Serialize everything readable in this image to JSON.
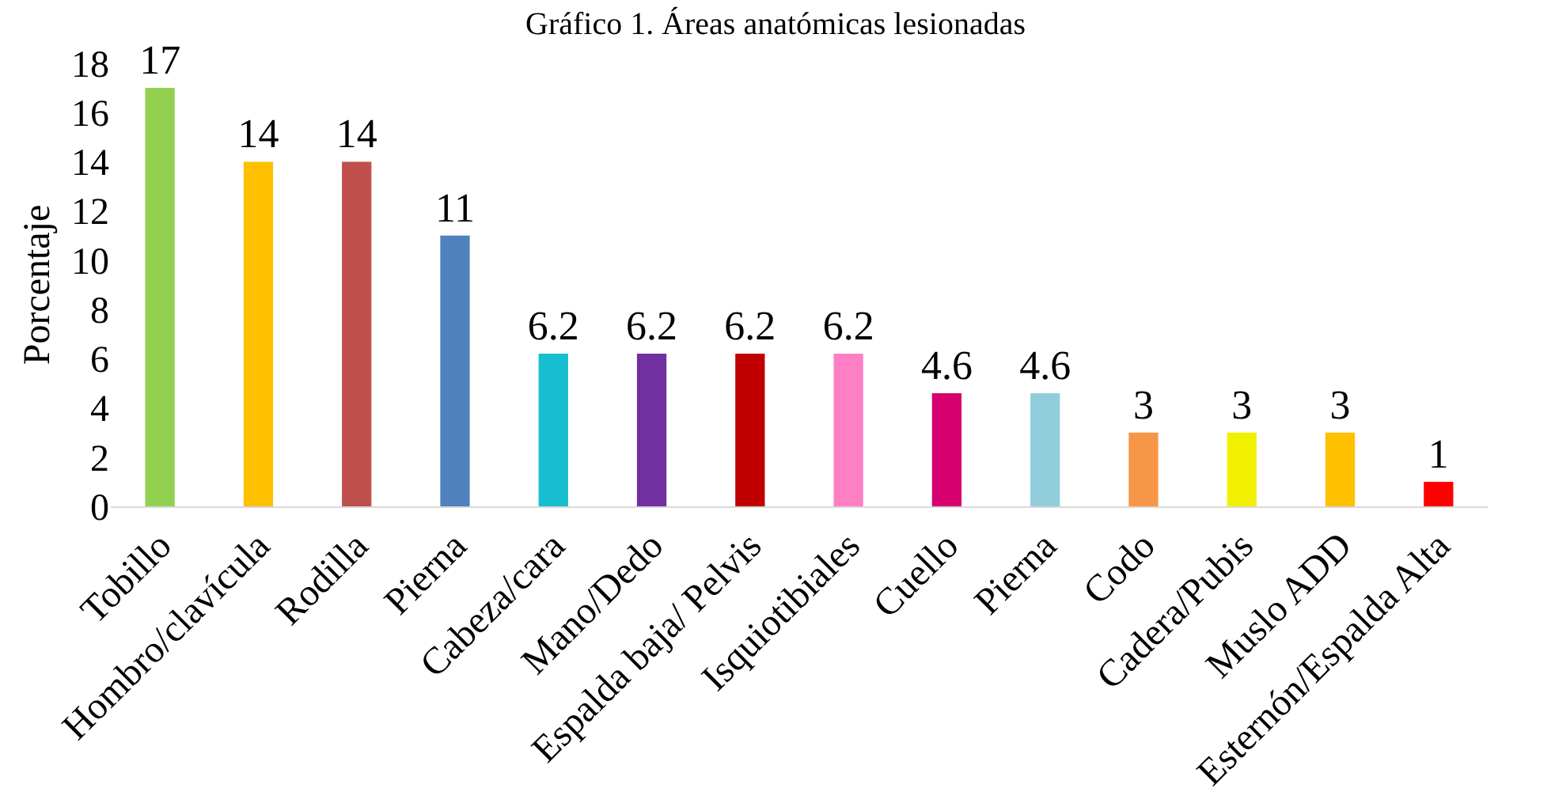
{
  "chart_data": {
    "type": "bar",
    "title": "Gráfico 1. Áreas anatómicas lesionadas",
    "ylabel": "Porcentaje",
    "categories": [
      "Tobillo",
      "Hombro/clavícula",
      "Rodilla",
      "Pierna",
      "Cabeza/cara",
      "Mano/Dedo",
      "Espalda baja/ Pelvis",
      "Isquiotibiales",
      "Cuello",
      "Pierna",
      "Codo",
      "Cadera/Pubis",
      "Muslo ADD",
      "Esternón/Espalda Alta"
    ],
    "values": [
      17,
      14,
      14,
      11,
      6.2,
      6.2,
      6.2,
      6.2,
      4.6,
      4.6,
      3,
      3,
      3,
      1
    ],
    "colors": [
      "#92d050",
      "#ffc000",
      "#c0504d",
      "#4f81bd",
      "#17becf",
      "#7030a0",
      "#c00000",
      "#ff7fc5",
      "#d6006e",
      "#92cddc",
      "#f79646",
      "#f0f000",
      "#ffc000",
      "#ff0000"
    ],
    "ylim": [
      0,
      18
    ],
    "yticks": [
      0,
      2,
      4,
      6,
      8,
      10,
      12,
      14,
      16,
      18
    ],
    "grid": false,
    "data_labels": true
  }
}
